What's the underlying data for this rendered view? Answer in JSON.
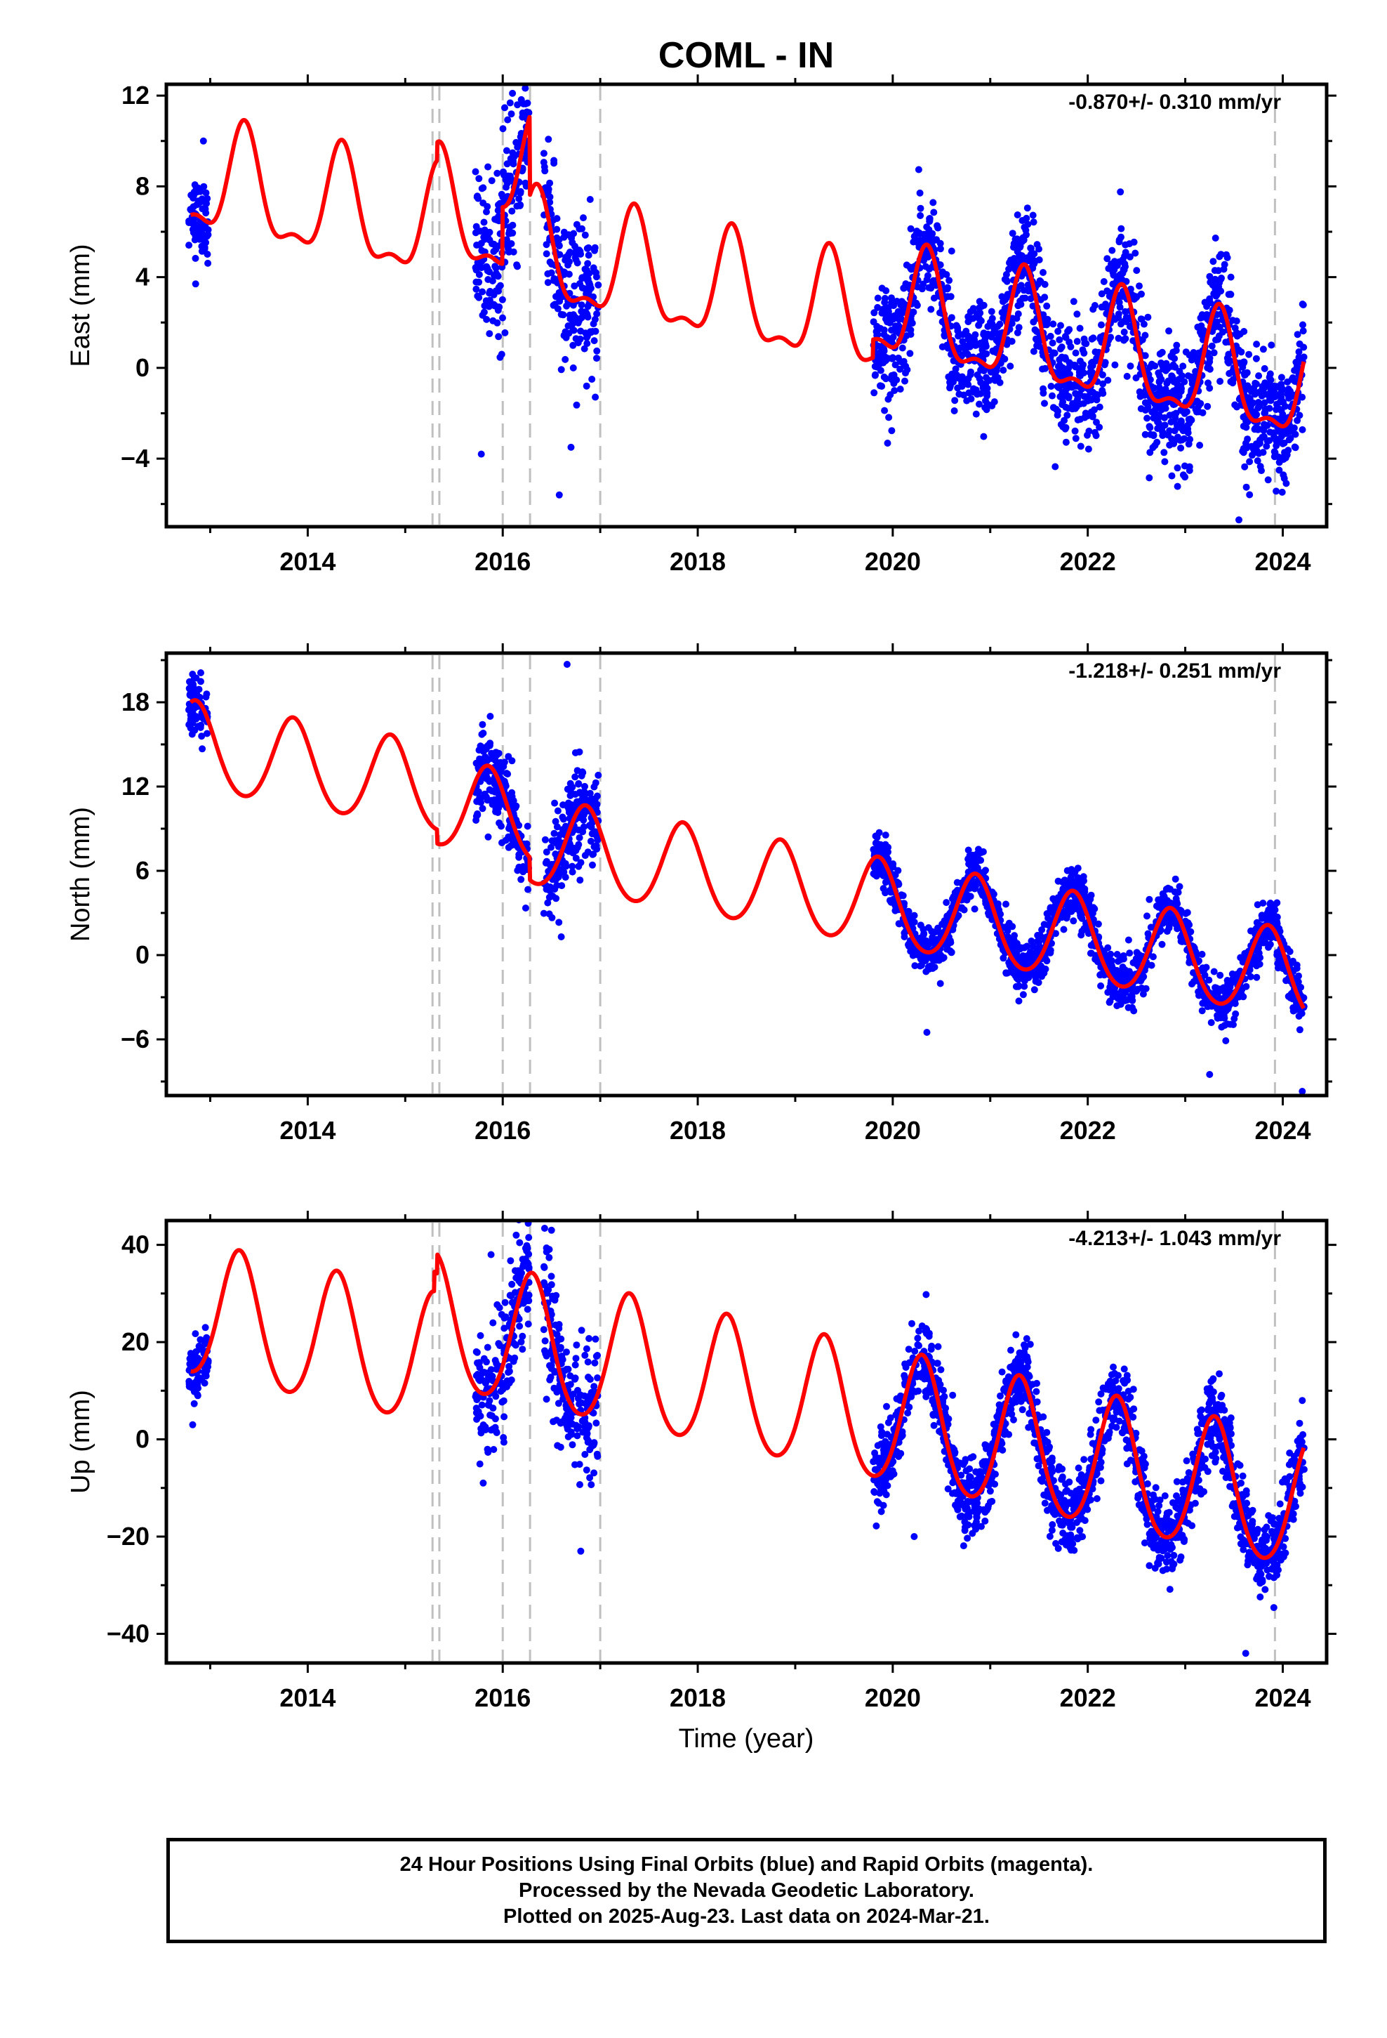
{
  "title": "COML - IN",
  "xlabel": "Time (year)",
  "colors": {
    "observed": "#0000ff",
    "model": "#ff0000",
    "offsets": "#c0c0c0",
    "axes": "#000000"
  },
  "footer": {
    "line1": "24 Hour Positions Using Final Orbits (blue) and Rapid Orbits (magenta).",
    "line2": "Processed by the Nevada Geodetic Laboratory.",
    "line3": "Plotted on 2025-Aug-23. Last data on 2024-Mar-21."
  },
  "chart_data": [
    {
      "type": "scatter",
      "component": "east",
      "ylabel": "East (mm)",
      "rate_text": "-0.870+/- 0.310 mm/yr",
      "xlim": [
        2012.55,
        2024.45
      ],
      "ylim": [
        -7,
        12.5
      ],
      "xticks": [
        2014,
        2016,
        2018,
        2020,
        2022,
        2024
      ],
      "yticks": [
        -4,
        0,
        4,
        8,
        12
      ],
      "offset_lines": [
        2015.28,
        2015.35,
        2016.0,
        2016.28,
        2017.0,
        2023.92
      ],
      "model": {
        "base": 8.2,
        "rate": -0.87,
        "amplitude": 2.3,
        "phase": 2013.35,
        "amplitude2": 0.9,
        "steps": [
          {
            "x": 2015.33,
            "dy": 0.8
          },
          {
            "x": 2016.0,
            "dy": 2.5
          },
          {
            "x": 2016.28,
            "dy": -3.5
          },
          {
            "x": 2019.8,
            "dy": 0.8
          }
        ]
      },
      "observations": [
        {
          "start": 2012.78,
          "end": 2012.98,
          "noise": 0.8,
          "outliers": [
            [
              2012.85,
              3.7
            ],
            [
              2012.93,
              10.0
            ]
          ]
        },
        {
          "start": 2015.72,
          "end": 2016.02,
          "noise": 1.8,
          "outliers": [
            [
              2015.78,
              -3.8
            ],
            [
              2016.1,
              12.1
            ]
          ]
        },
        {
          "start": 2016.02,
          "end": 2016.27,
          "noise": 1.6,
          "outliers": []
        },
        {
          "start": 2016.42,
          "end": 2016.98,
          "noise": 1.6,
          "outliers": [
            [
              2016.58,
              -5.6
            ],
            [
              2016.7,
              -3.5
            ]
          ]
        },
        {
          "start": 2019.8,
          "end": 2024.22,
          "noise": 1.3,
          "outliers": [
            [
              2023.55,
              -6.7
            ],
            [
              2021.35,
              6.2
            ]
          ]
        }
      ]
    },
    {
      "type": "scatter",
      "component": "north",
      "ylabel": "North (mm)",
      "rate_text": "-1.218+/- 0.251 mm/yr",
      "xlim": [
        2012.55,
        2024.45
      ],
      "ylim": [
        -10,
        21.5
      ],
      "xticks": [
        2014,
        2016,
        2018,
        2020,
        2022,
        2024
      ],
      "yticks": [
        -6,
        0,
        6,
        12,
        18
      ],
      "offset_lines": [
        2015.28,
        2015.35,
        2016.0,
        2016.28,
        2017.0,
        2023.92
      ],
      "model": {
        "base": 14.8,
        "rate": -1.218,
        "amplitude": 3.1,
        "phase": 2012.85,
        "amplitude2": 0.3,
        "steps": [
          {
            "x": 2015.33,
            "dy": -1.0
          },
          {
            "x": 2016.28,
            "dy": -1.6
          }
        ]
      },
      "observations": [
        {
          "start": 2012.78,
          "end": 2012.98,
          "noise": 0.9,
          "outliers": [
            [
              2012.8,
              18.7
            ]
          ]
        },
        {
          "start": 2015.72,
          "end": 2016.27,
          "noise": 1.5,
          "outliers": [
            [
              2015.8,
              15.8
            ]
          ]
        },
        {
          "start": 2016.42,
          "end": 2016.98,
          "noise": 1.7,
          "outliers": [
            [
              2016.66,
              20.7
            ],
            [
              2016.6,
              1.3
            ]
          ]
        },
        {
          "start": 2019.8,
          "end": 2024.22,
          "noise": 0.9,
          "outliers": [
            [
              2020.35,
              -5.5
            ],
            [
              2023.25,
              -8.5
            ],
            [
              2024.2,
              -9.7
            ]
          ]
        }
      ]
    },
    {
      "type": "scatter",
      "component": "up",
      "ylabel": "Up (mm)",
      "rate_text": "-4.213+/- 1.043 mm/yr",
      "xlim": [
        2012.55,
        2024.45
      ],
      "ylim": [
        -46,
        45
      ],
      "xticks": [
        2014,
        2016,
        2018,
        2020,
        2022,
        2024
      ],
      "yticks": [
        -40,
        -20,
        0,
        20,
        40
      ],
      "offset_lines": [
        2015.28,
        2015.35,
        2016.0,
        2016.28,
        2017.0,
        2023.92
      ],
      "model": {
        "base": 26.0,
        "rate": -4.213,
        "amplitude": 13.5,
        "phase": 2013.3,
        "amplitude2": 1.5,
        "steps": [
          {
            "x": 2015.3,
            "dy": 4.0
          },
          {
            "x": 2015.33,
            "dy": 4.0
          }
        ]
      },
      "observations": [
        {
          "start": 2012.78,
          "end": 2012.98,
          "noise": 3.0,
          "outliers": [
            [
              2012.82,
              3.0
            ],
            [
              2012.95,
              23.0
            ]
          ]
        },
        {
          "start": 2015.72,
          "end": 2016.27,
          "noise": 6.0,
          "outliers": [
            [
              2015.8,
              -9.0
            ],
            [
              2015.88,
              38.0
            ]
          ]
        },
        {
          "start": 2016.42,
          "end": 2016.98,
          "noise": 7.0,
          "outliers": [
            [
              2016.5,
              43.0
            ],
            [
              2016.8,
              -23.0
            ]
          ]
        },
        {
          "start": 2019.8,
          "end": 2024.22,
          "noise": 4.0,
          "outliers": [
            [
              2023.62,
              -44.0
            ],
            [
              2020.22,
              -20.0
            ],
            [
              2024.2,
              8.0
            ]
          ]
        }
      ]
    }
  ]
}
